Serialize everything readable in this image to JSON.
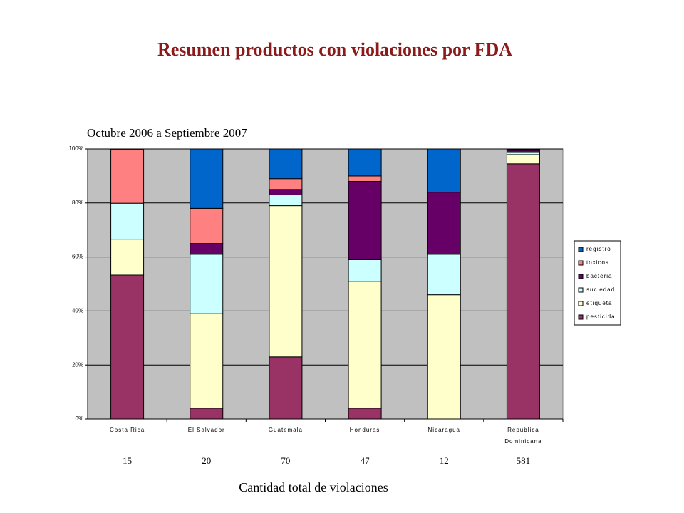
{
  "chart_data": {
    "type": "stacked_bar_percent",
    "title": "Resumen productos con violaciones por FDA",
    "subtitle": "Octubre 2006 a Septiembre 2007",
    "x_label": "Cantidad total de violaciones",
    "categories": [
      "Costa Rica",
      "El Salvador",
      "Guatemala",
      "Honduras",
      "Nicaragua",
      "Republica Dominicana"
    ],
    "totals": [
      15,
      20,
      70,
      47,
      12,
      581
    ],
    "series": [
      {
        "name": "registro",
        "color": "#0066cc",
        "values": [
          0,
          22,
          11,
          10,
          16,
          0.2
        ]
      },
      {
        "name": "toxicos",
        "color": "#ff8080",
        "values": [
          20,
          13,
          4,
          2,
          0,
          0.3
        ]
      },
      {
        "name": "bacteria",
        "color": "#660066",
        "values": [
          0,
          4,
          2,
          29,
          23,
          0.8
        ]
      },
      {
        "name": "suciedad",
        "color": "#ccffff",
        "values": [
          13.3,
          22,
          4,
          8,
          15,
          0.8
        ]
      },
      {
        "name": "etiqueta",
        "color": "#ffffcc",
        "values": [
          13.3,
          35,
          56,
          47,
          46,
          3.4
        ]
      },
      {
        "name": "pesticida",
        "color": "#993366",
        "values": [
          53.3,
          4,
          23,
          4,
          0,
          94.5
        ]
      }
    ],
    "ylim": [
      0,
      100
    ],
    "yticks": [
      {
        "value": 0,
        "label": "0%"
      },
      {
        "value": 20,
        "label": "20%"
      },
      {
        "value": 40,
        "label": "40%"
      },
      {
        "value": 60,
        "label": "60%"
      },
      {
        "value": 80,
        "label": "80%"
      },
      {
        "value": 100,
        "label": "100%"
      }
    ],
    "grid": true,
    "plot_background": "#c0c0c0",
    "legend": "right"
  }
}
